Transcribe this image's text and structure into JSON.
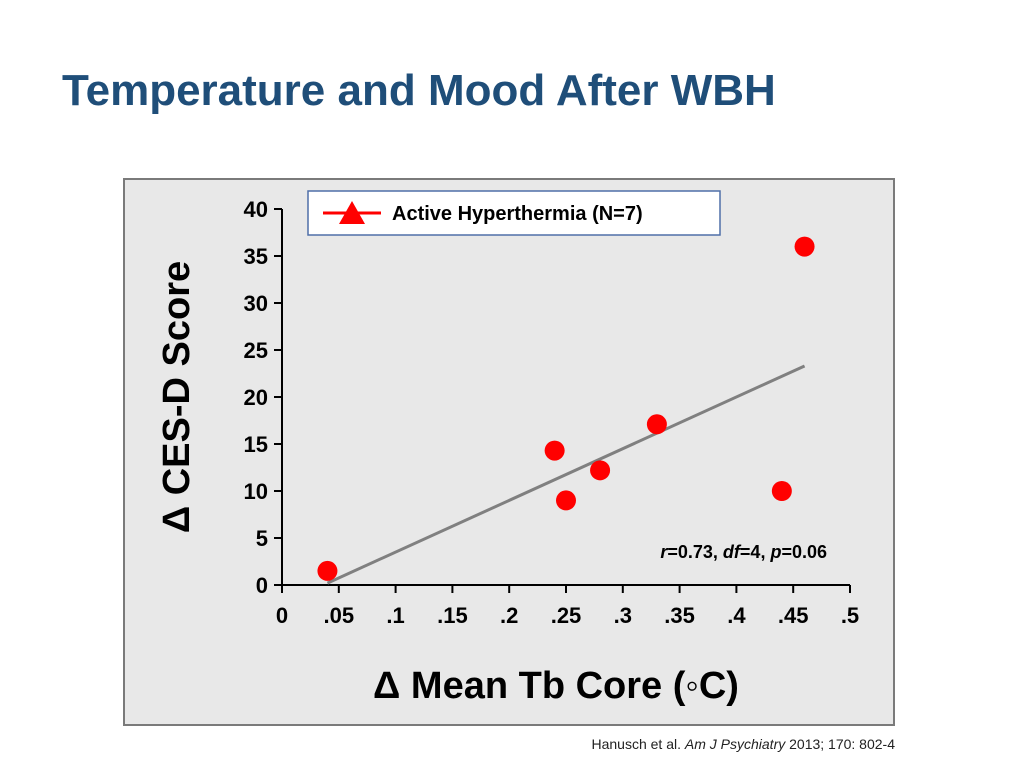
{
  "slide": {
    "title": "Temperature and Mood After WBH"
  },
  "chart_data": {
    "type": "scatter",
    "title": "",
    "xlabel": "Δ Mean Tb Core (◦C)",
    "ylabel": "Δ CES-D Score",
    "xlim": [
      0,
      0.5
    ],
    "ylim": [
      0,
      40
    ],
    "x_ticks": [
      0,
      0.05,
      0.1,
      0.15,
      0.2,
      0.25,
      0.3,
      0.35,
      0.4,
      0.45,
      0.5
    ],
    "x_tick_labels": [
      "0",
      ".05",
      ".1",
      ".15",
      ".2",
      ".25",
      ".3",
      ".35",
      ".4",
      ".45",
      ".5"
    ],
    "y_ticks": [
      0,
      5,
      10,
      15,
      20,
      25,
      30,
      35,
      40
    ],
    "y_tick_labels": [
      "0",
      "5",
      "10",
      "15",
      "20",
      "25",
      "30",
      "35",
      "40"
    ],
    "grid": false,
    "legend": {
      "placement": "top",
      "entries": [
        {
          "label": "Active Hyperthermia (N=7)",
          "marker": "triangle",
          "color": "#ff0000"
        }
      ]
    },
    "series": [
      {
        "name": "Active Hyperthermia (N=7)",
        "color": "#ff0000",
        "points": [
          {
            "x": 0.04,
            "y": 1.5
          },
          {
            "x": 0.24,
            "y": 14.3
          },
          {
            "x": 0.25,
            "y": 9.0
          },
          {
            "x": 0.28,
            "y": 12.2
          },
          {
            "x": 0.33,
            "y": 17.1
          },
          {
            "x": 0.44,
            "y": 10.0
          },
          {
            "x": 0.46,
            "y": 36.0
          }
        ]
      }
    ],
    "trendline": {
      "color": "#808080",
      "x": [
        0.04,
        0.46
      ],
      "y": [
        0.2,
        23.3
      ]
    },
    "annotation": {
      "parts": [
        {
          "text": "r",
          "italic": true
        },
        {
          "text": "=0.73, ",
          "italic": false
        },
        {
          "text": "df",
          "italic": true
        },
        {
          "text": "=4, ",
          "italic": false
        },
        {
          "text": "p",
          "italic": true
        },
        {
          "text": "=0.06",
          "italic": false
        }
      ]
    }
  },
  "citation": {
    "authors": "Hanusch et al. ",
    "journal": "Am J Psychiatry",
    "details": " 2013; 170: 802-4"
  }
}
